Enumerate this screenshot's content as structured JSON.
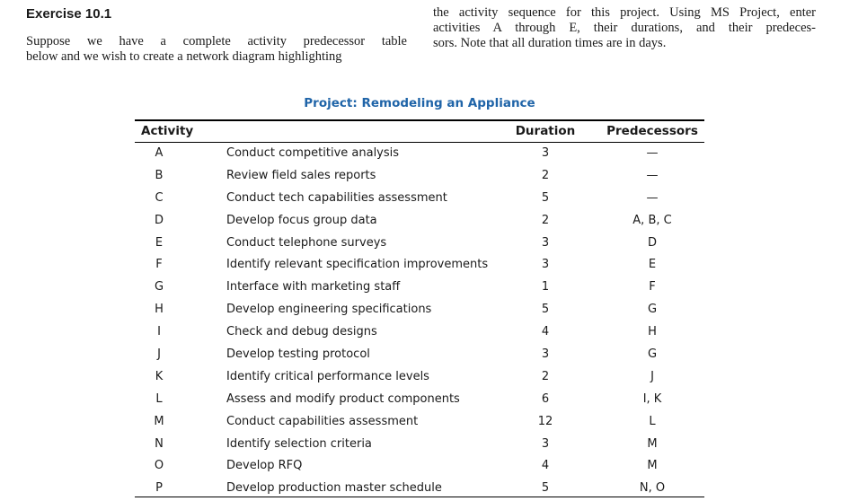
{
  "exercise": {
    "title": "Exercise 10.1",
    "left_lines": [
      "Suppose we have a complete activity predecessor table",
      "below and we wish to create a network diagram highlighting"
    ],
    "right_lines": [
      "the activity sequence for this project. Using MS Project, enter",
      "activities A through E, their durations, and their predeces-",
      "sors. Note that all duration times are in days."
    ]
  },
  "table": {
    "title": "Project: Remodeling an Appliance",
    "headers": {
      "activity": "Activity",
      "duration": "Duration",
      "predecessors": "Predecessors"
    },
    "rows": [
      {
        "id": "A",
        "desc": "Conduct competitive analysis",
        "dur": "3",
        "pred": "—"
      },
      {
        "id": "B",
        "desc": "Review field sales reports",
        "dur": "2",
        "pred": "—"
      },
      {
        "id": "C",
        "desc": "Conduct tech capabilities assessment",
        "dur": "5",
        "pred": "—"
      },
      {
        "id": "D",
        "desc": "Develop focus group data",
        "dur": "2",
        "pred": "A, B, C"
      },
      {
        "id": "E",
        "desc": "Conduct telephone surveys",
        "dur": "3",
        "pred": "D"
      },
      {
        "id": "F",
        "desc": "Identify relevant specification improvements",
        "dur": "3",
        "pred": "E"
      },
      {
        "id": "G",
        "desc": "Interface with marketing staff",
        "dur": "1",
        "pred": "F"
      },
      {
        "id": "H",
        "desc": "Develop engineering specifications",
        "dur": "5",
        "pred": "G"
      },
      {
        "id": "I",
        "desc": "Check and debug designs",
        "dur": "4",
        "pred": "H"
      },
      {
        "id": "J",
        "desc": "Develop testing protocol",
        "dur": "3",
        "pred": "G"
      },
      {
        "id": "K",
        "desc": "Identify critical performance levels",
        "dur": "2",
        "pred": "J"
      },
      {
        "id": "L",
        "desc": "Assess and modify product components",
        "dur": "6",
        "pred": "I, K"
      },
      {
        "id": "M",
        "desc": "Conduct capabilities assessment",
        "dur": "12",
        "pred": "L"
      },
      {
        "id": "N",
        "desc": "Identify selection criteria",
        "dur": "3",
        "pred": "M"
      },
      {
        "id": "O",
        "desc": "Develop RFQ",
        "dur": "4",
        "pred": "M"
      },
      {
        "id": "P",
        "desc": "Develop production master schedule",
        "dur": "5",
        "pred": "N, O"
      }
    ]
  }
}
